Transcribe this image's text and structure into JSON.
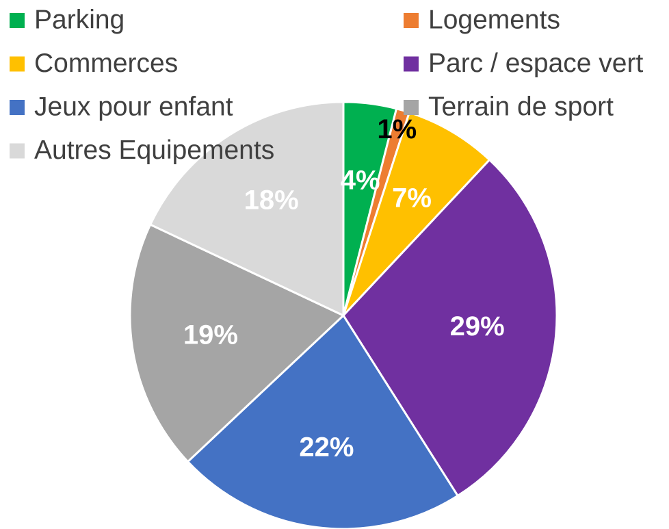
{
  "chart_data": {
    "type": "pie",
    "categories": [
      "Parking",
      "Logements",
      "Commerces",
      "Parc / espace vert",
      "Jeux pour enfant",
      "Terrain de sport",
      "Autres Equipements"
    ],
    "values": [
      4,
      1,
      7,
      29,
      22,
      19,
      18
    ],
    "value_labels": [
      "4%",
      "1%",
      "7%",
      "29%",
      "22%",
      "19%",
      "18%"
    ],
    "colors": [
      "#00b050",
      "#ed7d31",
      "#ffc000",
      "#7030a0",
      "#4472c4",
      "#a5a5a5",
      "#d9d9d9"
    ],
    "legend": "top"
  }
}
